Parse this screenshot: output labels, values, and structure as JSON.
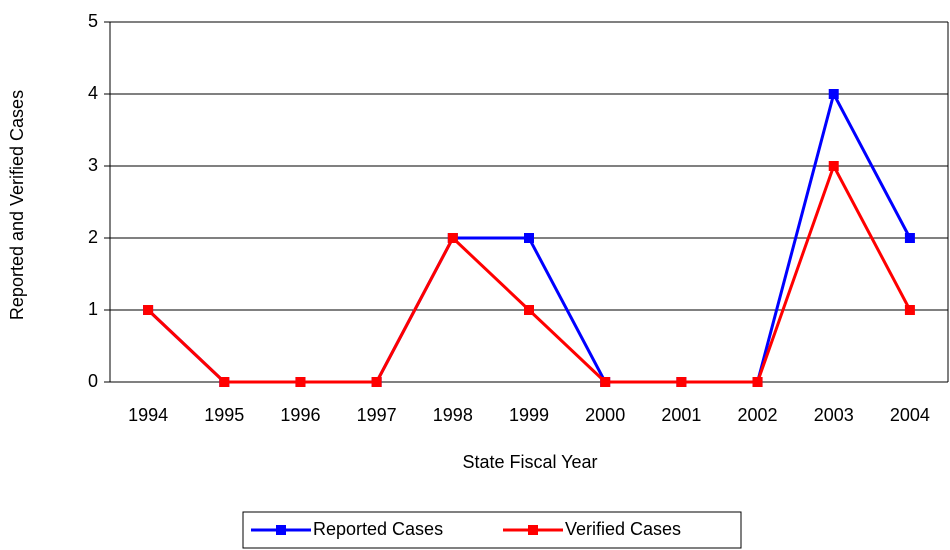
{
  "chart_data": {
    "type": "line",
    "categories": [
      "1994",
      "1995",
      "1996",
      "1997",
      "1998",
      "1999",
      "2000",
      "2001",
      "2002",
      "2003",
      "2004"
    ],
    "series": [
      {
        "name": "Reported Cases",
        "color": "#0000ff",
        "values": [
          1,
          0,
          0,
          0,
          2,
          2,
          0,
          0,
          0,
          4,
          2
        ]
      },
      {
        "name": "Verified Cases",
        "color": "#ff0000",
        "values": [
          1,
          0,
          0,
          0,
          2,
          1,
          0,
          0,
          0,
          3,
          1
        ]
      }
    ],
    "x_label": "State Fiscal Year",
    "y_label": "Reported and Verified Cases",
    "ylim": [
      0,
      5
    ],
    "yticks": [
      0,
      1,
      2,
      3,
      4,
      5
    ],
    "grid": true,
    "legend": "bottom"
  }
}
